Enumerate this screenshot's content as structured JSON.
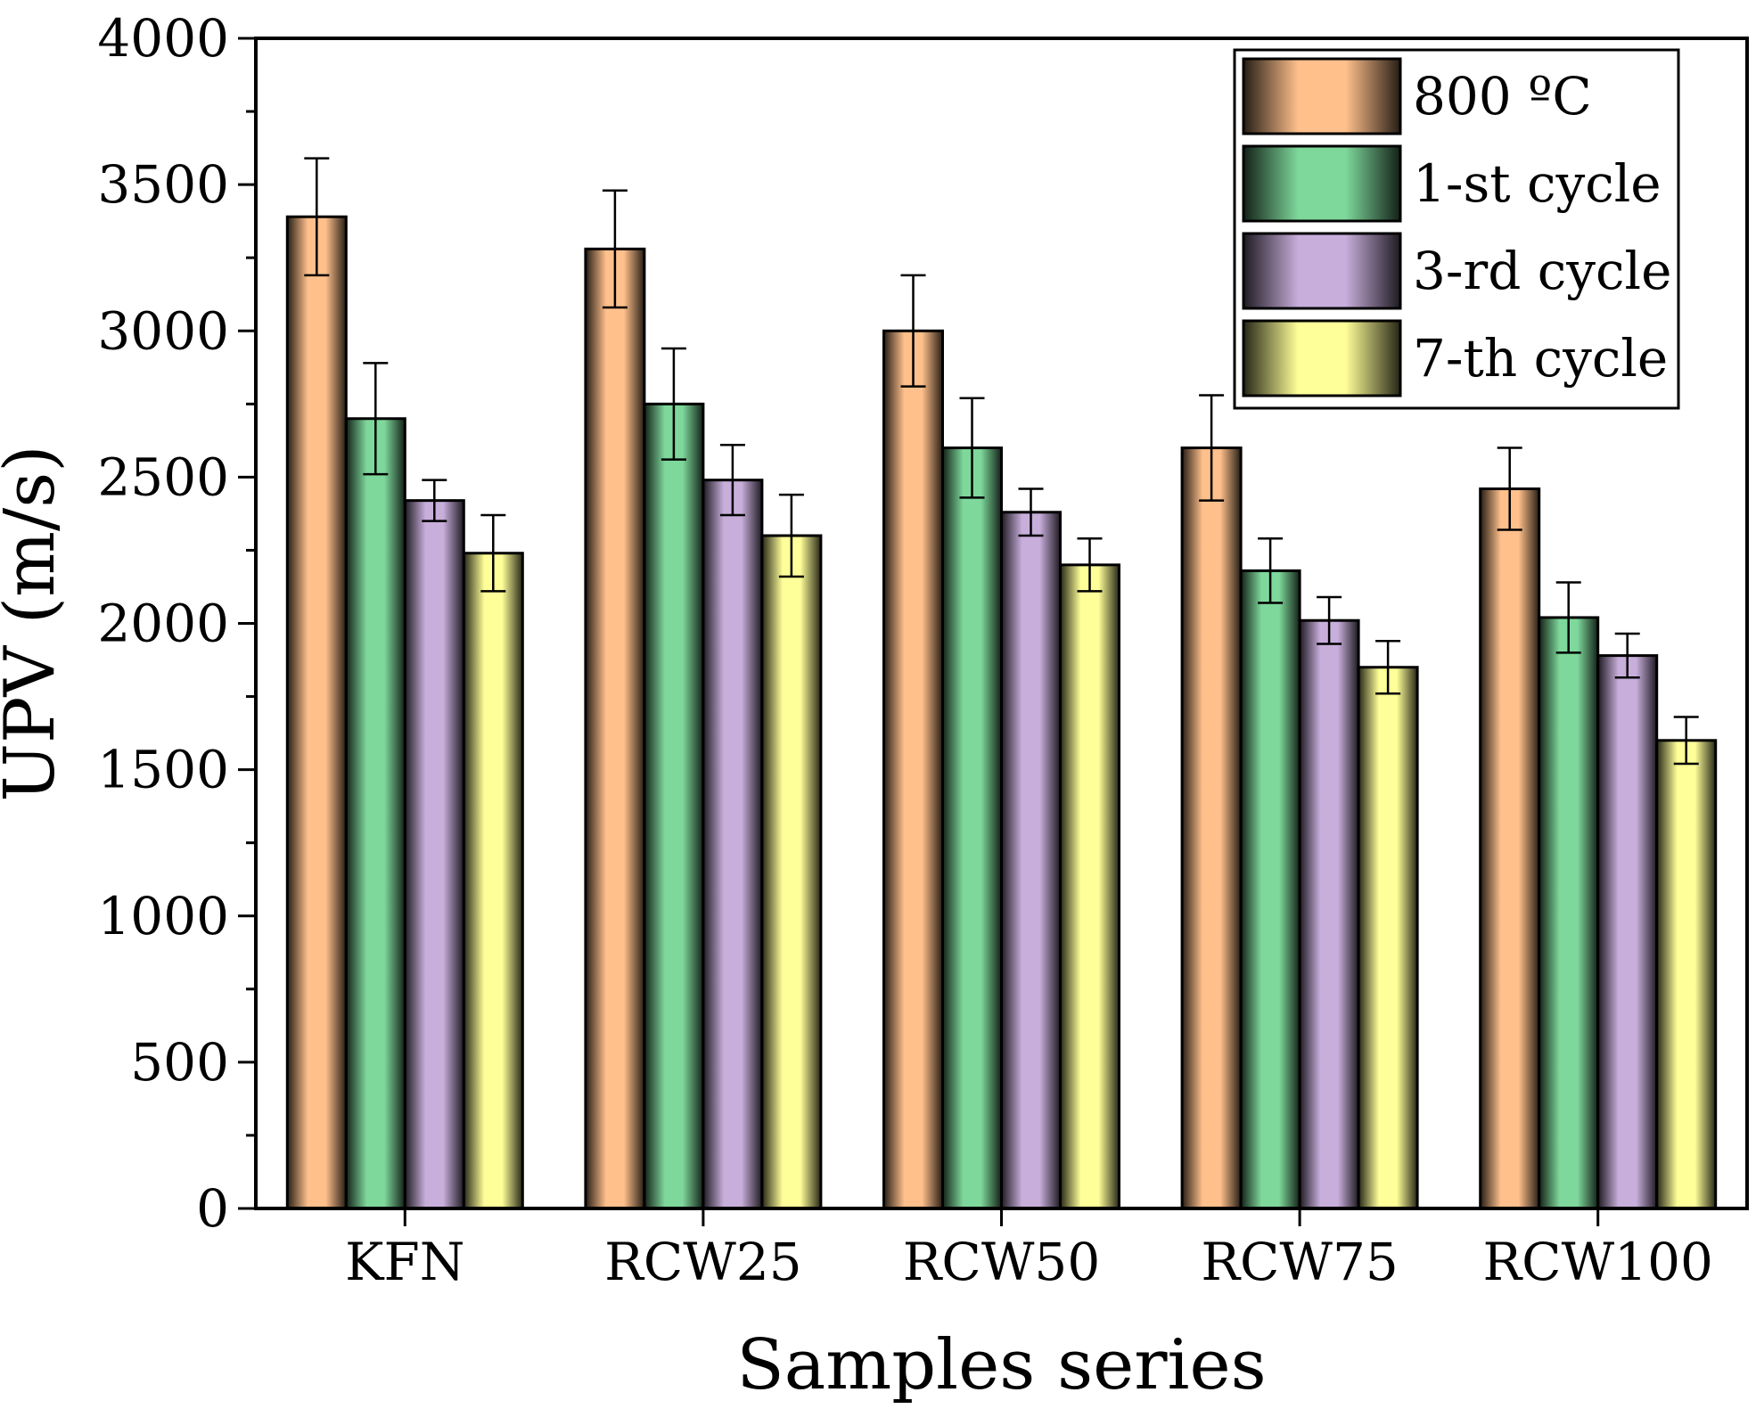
{
  "chart_data": {
    "type": "bar",
    "title": "",
    "xlabel": "Samples series",
    "ylabel": "UPV (m/s)",
    "ylim": [
      0,
      4000
    ],
    "yticks": [
      0,
      500,
      1000,
      1500,
      2000,
      2500,
      3000,
      3500,
      4000
    ],
    "categories": [
      "KFN",
      "RCW25",
      "RCW50",
      "RCW75",
      "RCW100"
    ],
    "series": [
      {
        "name": "800 ºC",
        "color": "#FFC08C",
        "values": [
          3390,
          3280,
          3000,
          2600,
          2460
        ],
        "errors": [
          200,
          200,
          190,
          180,
          140
        ]
      },
      {
        "name": "1-st cycle",
        "color": "#7ED89B",
        "values": [
          2700,
          2750,
          2600,
          2180,
          2020
        ],
        "errors": [
          190,
          190,
          170,
          110,
          120
        ]
      },
      {
        "name": "3-rd cycle",
        "color": "#C8AEDB",
        "values": [
          2420,
          2490,
          2380,
          2010,
          1890
        ],
        "errors": [
          70,
          120,
          80,
          80,
          75
        ]
      },
      {
        "name": "7-th cycle",
        "color": "#FFFF99",
        "values": [
          2240,
          2300,
          2200,
          1850,
          1600
        ],
        "errors": [
          130,
          140,
          90,
          90,
          80
        ]
      }
    ],
    "legend_position": "top-right",
    "grid": false
  }
}
